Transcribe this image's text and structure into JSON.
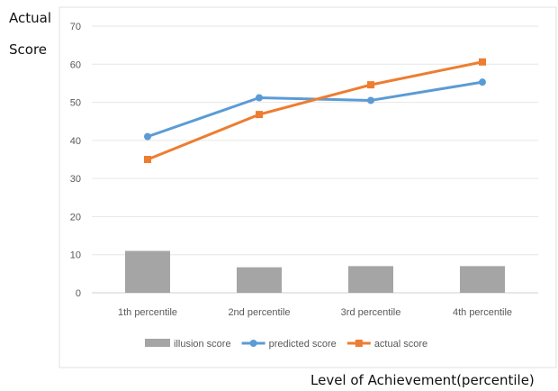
{
  "chart_data": {
    "type": "bar+line",
    "categories": [
      "1th percentile",
      "2nd percentile",
      "3rd percentile",
      "4th percentile"
    ],
    "series": [
      {
        "name": "illusion score",
        "type": "bar",
        "color": "#a5a5a5",
        "values": [
          11,
          6.7,
          7,
          7
        ]
      },
      {
        "name": "predicted score",
        "type": "line",
        "color": "#5b9bd5",
        "marker": "circle",
        "values": [
          41,
          51.2,
          50.5,
          55.3
        ]
      },
      {
        "name": "actual score",
        "type": "line",
        "color": "#ed7d31",
        "marker": "square",
        "values": [
          35,
          46.8,
          54.6,
          60.6
        ]
      }
    ],
    "ylim": [
      0,
      70
    ],
    "yticks": [
      "0",
      "10",
      "20",
      "30",
      "40",
      "50",
      "60",
      "70"
    ],
    "ylabel_lines": [
      "Actual",
      "Score"
    ],
    "xlabel": "Level of Achievement(percentile)",
    "grid": true,
    "legend_position": "bottom"
  }
}
